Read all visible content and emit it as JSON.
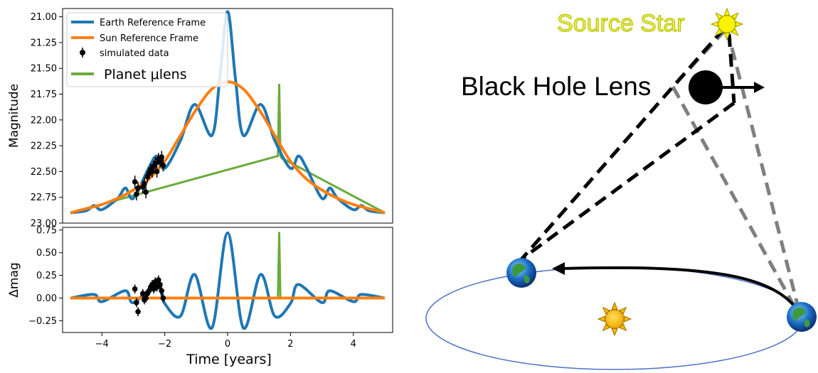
{
  "chart_data": [
    {
      "type": "line",
      "panel": "top",
      "ylabel": "Magnitude",
      "xlim": [
        -5.25,
        5.25
      ],
      "ylim": [
        23.0,
        20.92
      ],
      "y_inverted": true,
      "yticks": [
        21.0,
        21.25,
        21.5,
        21.75,
        22.0,
        22.25,
        22.5,
        22.75,
        23.0
      ],
      "ytick_labels": [
        "21.00",
        "21.25",
        "21.50",
        "21.75",
        "22.00",
        "22.25",
        "22.50",
        "22.75",
        "23.00"
      ],
      "grid": false,
      "legend_position": "top-left",
      "series": [
        {
          "name": "Earth Reference Frame",
          "color": "#1f77b4",
          "x": [
            -5,
            -4.5,
            -4.25,
            -4,
            -3.5,
            -3.25,
            -3,
            -2.5,
            -2.25,
            -2,
            -1.5,
            -1.05,
            -0.5,
            -0.25,
            0,
            0.25,
            0.5,
            1.05,
            1.5,
            2,
            2.25,
            2.5,
            3,
            3.25,
            3.5,
            4,
            4.25,
            4.5,
            5
          ],
          "y": [
            22.9,
            22.88,
            22.83,
            22.87,
            22.76,
            22.66,
            22.76,
            22.46,
            22.35,
            22.47,
            22.2,
            21.85,
            22.15,
            21.6,
            20.95,
            21.6,
            22.15,
            21.85,
            22.2,
            22.47,
            22.35,
            22.46,
            22.76,
            22.66,
            22.76,
            22.87,
            22.83,
            22.88,
            22.9
          ]
        },
        {
          "name": "Sun Reference Frame",
          "color": "#ff7f0e",
          "x": [
            -5,
            -4.5,
            -4,
            -3.5,
            -3,
            -2.5,
            -2,
            -1.5,
            -1,
            -0.5,
            0,
            0.5,
            1,
            1.5,
            2,
            2.5,
            3,
            3.5,
            4,
            4.5,
            5
          ],
          "y": [
            22.9,
            22.86,
            22.82,
            22.76,
            22.68,
            22.57,
            22.4,
            22.15,
            21.9,
            21.7,
            21.63,
            21.7,
            21.9,
            22.15,
            22.4,
            22.57,
            22.68,
            22.76,
            22.82,
            22.86,
            22.9
          ]
        },
        {
          "name": "Planet μlens",
          "color": "#6aab3c",
          "x": [
            -5,
            1.6,
            1.64,
            1.68,
            1.72,
            5
          ],
          "y": [
            22.9,
            22.35,
            21.66,
            22.35,
            22.37,
            22.9
          ]
        },
        {
          "name": "simulated data",
          "color": "#000000",
          "kind": "errorbar",
          "x": [
            -2.95,
            -2.9,
            -2.85,
            -2.7,
            -2.65,
            -2.6,
            -2.55,
            -2.5,
            -2.45,
            -2.4,
            -2.35,
            -2.3,
            -2.25,
            -2.2,
            -2.15,
            -2.1,
            -2.05
          ],
          "y": [
            22.6,
            22.72,
            22.66,
            22.65,
            22.62,
            22.7,
            22.55,
            22.52,
            22.48,
            22.5,
            22.45,
            22.42,
            22.5,
            22.38,
            22.4,
            22.36,
            22.44
          ],
          "yerr": [
            0.06,
            0.06,
            0.06,
            0.06,
            0.06,
            0.06,
            0.06,
            0.06,
            0.06,
            0.06,
            0.06,
            0.06,
            0.06,
            0.06,
            0.06,
            0.06,
            0.06
          ]
        }
      ]
    },
    {
      "type": "line",
      "panel": "bottom",
      "ylabel": "Δmag",
      "xlabel": "Time [years]",
      "xlim": [
        -5.25,
        5.25
      ],
      "ylim": [
        -0.38,
        0.78
      ],
      "yticks": [
        -0.25,
        0.0,
        0.25,
        0.5,
        0.75
      ],
      "ytick_labels": [
        "−0.25",
        "0.00",
        "0.25",
        "0.50",
        "0.75"
      ],
      "xticks": [
        -4,
        -2,
        0,
        2,
        4
      ],
      "xtick_labels": [
        "−4",
        "−2",
        "0",
        "2",
        "4"
      ],
      "grid": false,
      "series": [
        {
          "name": "Earth Reference Frame",
          "color": "#1f77b4",
          "x": [
            -5,
            -4.25,
            -4,
            -3.25,
            -3,
            -2.25,
            -2,
            -1.5,
            -1.05,
            -0.5,
            0,
            0.5,
            1.05,
            1.5,
            2,
            2.25,
            3,
            3.25,
            4,
            4.25,
            5
          ],
          "y": [
            0.0,
            0.04,
            -0.04,
            0.08,
            -0.05,
            0.15,
            -0.06,
            -0.2,
            0.26,
            -0.33,
            0.72,
            -0.33,
            0.26,
            -0.2,
            -0.06,
            0.15,
            -0.05,
            0.08,
            -0.04,
            0.04,
            0.0
          ]
        },
        {
          "name": "Sun Reference Frame",
          "color": "#ff7f0e",
          "x": [
            -5,
            5
          ],
          "y": [
            0.0,
            0.0
          ]
        },
        {
          "name": "Planet μlens",
          "color": "#6aab3c",
          "x": [
            -5,
            1.6,
            1.64,
            1.68,
            5
          ],
          "y": [
            0.0,
            0.0,
            0.72,
            0.0,
            0.0
          ]
        },
        {
          "name": "simulated data",
          "color": "#000000",
          "kind": "errorbar",
          "x": [
            -2.95,
            -2.9,
            -2.85,
            -2.7,
            -2.65,
            -2.6,
            -2.55,
            -2.5,
            -2.45,
            -2.4,
            -2.35,
            -2.3,
            -2.25,
            -2.2,
            -2.15,
            -2.1,
            -2.05
          ],
          "y": [
            0.1,
            -0.05,
            -0.15,
            0.05,
            -0.02,
            0.0,
            0.05,
            0.08,
            0.12,
            0.15,
            0.1,
            0.18,
            0.12,
            0.2,
            0.15,
            0.08,
            0.0
          ],
          "yerr": [
            0.05,
            0.05,
            0.05,
            0.05,
            0.05,
            0.05,
            0.05,
            0.05,
            0.05,
            0.05,
            0.05,
            0.05,
            0.05,
            0.05,
            0.05,
            0.05,
            0.05
          ]
        }
      ]
    }
  ],
  "legend": {
    "earth": "Earth Reference Frame",
    "sun": "Sun Reference Frame",
    "data": "simulated data",
    "planet": "Planet μlens"
  },
  "diagram": {
    "source_star": "Source Star",
    "lens": "Black Hole Lens",
    "colors": {
      "source_label": "#f0f060",
      "source_label_outline": "#b8c400",
      "star_fill": "#f9f200",
      "sun_fill": "#f5b800",
      "orbit": "#4f72c4",
      "earth_sightline": "#000000",
      "sun_sightline": "#7f7f7f"
    },
    "icons": [
      "star-icon",
      "black-hole-icon",
      "sun-icon",
      "earth-icon"
    ]
  }
}
